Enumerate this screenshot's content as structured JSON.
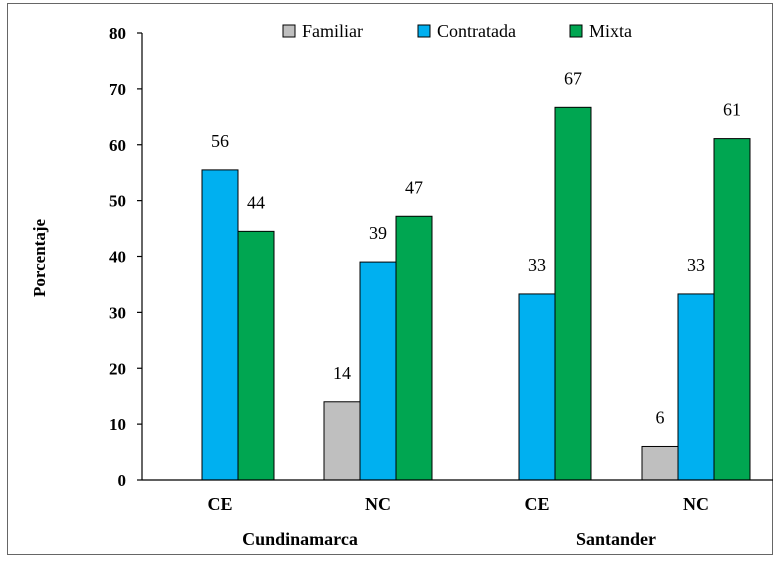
{
  "chart_data": {
    "type": "bar",
    "ylabel": "Porcentaje",
    "ylim": [
      0,
      80
    ],
    "yticks": [
      0,
      10,
      20,
      30,
      40,
      50,
      60,
      70,
      80
    ],
    "categories": [
      "CE",
      "NC",
      "CE",
      "NC"
    ],
    "groups": [
      {
        "label": "Cundinamarca",
        "categories": [
          "CE",
          "NC"
        ]
      },
      {
        "label": "Santander",
        "categories": [
          "CE",
          "NC"
        ]
      }
    ],
    "legend_position": "top",
    "series": [
      {
        "name": "Familiar",
        "color": "#bfbfbf",
        "values": [
          null,
          14,
          null,
          6
        ],
        "labels": [
          "",
          "14",
          "",
          "6"
        ]
      },
      {
        "name": "Contratada",
        "color": "#00b0f0",
        "values": [
          55.5,
          39,
          33.3,
          33.3
        ],
        "labels": [
          "56",
          "39",
          "33",
          "33"
        ]
      },
      {
        "name": "Mixta",
        "color": "#00a651",
        "values": [
          44.5,
          47.2,
          66.7,
          61.1
        ],
        "labels": [
          "44",
          "47",
          "67",
          "61"
        ]
      }
    ]
  }
}
